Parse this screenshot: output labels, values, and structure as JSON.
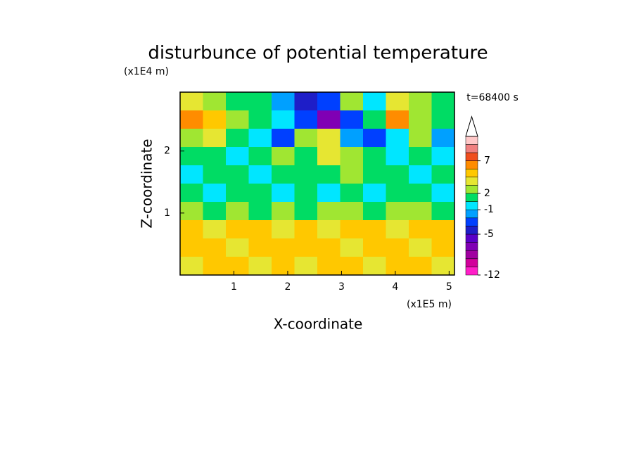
{
  "chart_data": {
    "type": "contour",
    "title": "disturbunce of potential temperature",
    "ylabel_unit": "(x1E4 m)",
    "xlabel_unit": "(x1E5 m)",
    "xlabel": "X-coordinate",
    "ylabel": "Z-coordinate",
    "time_label": "t=68400 s",
    "xlim": [
      0,
      5.1
    ],
    "xticks": [
      1,
      2,
      3,
      4,
      5
    ],
    "ylim": [
      0,
      2.95
    ],
    "yticks": [
      1,
      2
    ],
    "values": [
      [
        3,
        2,
        1,
        0,
        -2,
        -5,
        -4,
        2,
        -1,
        3,
        2,
        1
      ],
      [
        5,
        4,
        2,
        0,
        -1,
        -4,
        -7,
        -3,
        1,
        5,
        2,
        0
      ],
      [
        2,
        3,
        1,
        -1,
        -3,
        2,
        3,
        -2,
        -4,
        -1,
        2,
        -2
      ],
      [
        0,
        1,
        -1,
        1,
        2,
        1,
        3,
        2,
        1,
        -1,
        0,
        -1
      ],
      [
        -1,
        0,
        1,
        -1,
        0,
        1,
        0,
        2,
        1,
        0,
        -1,
        0
      ],
      [
        0,
        -1,
        0,
        0,
        -1,
        0,
        -1,
        0,
        -1,
        0,
        0,
        -1
      ],
      [
        2,
        1,
        2,
        1,
        2,
        1,
        2,
        2,
        1,
        2,
        2,
        1
      ],
      [
        4,
        3,
        4,
        4,
        3,
        4,
        3,
        4,
        4,
        3,
        4,
        4
      ],
      [
        4,
        4,
        3,
        4,
        4,
        4,
        4,
        3,
        4,
        4,
        3,
        4
      ],
      [
        3,
        4,
        4,
        3,
        4,
        3,
        4,
        4,
        3,
        4,
        4,
        3
      ]
    ],
    "colorbar": {
      "levels": [
        -12,
        -10,
        -8,
        -7,
        -6,
        -5,
        -4,
        -2,
        -1,
        0,
        2,
        3,
        4,
        5,
        7,
        8,
        9,
        10
      ],
      "colors": [
        "#ff1ec8",
        "#d2009b",
        "#a000a0",
        "#8000b4",
        "#5a00c8",
        "#1e1ec8",
        "#0040ff",
        "#00a0ff",
        "#00e6ff",
        "#00dc64",
        "#a0e632",
        "#e6e632",
        "#ffc800",
        "#ff8c00",
        "#f04e1e",
        "#f08080",
        "#ffc8c8"
      ],
      "ticks": [
        -12,
        -5,
        -1,
        2,
        7
      ]
    }
  }
}
